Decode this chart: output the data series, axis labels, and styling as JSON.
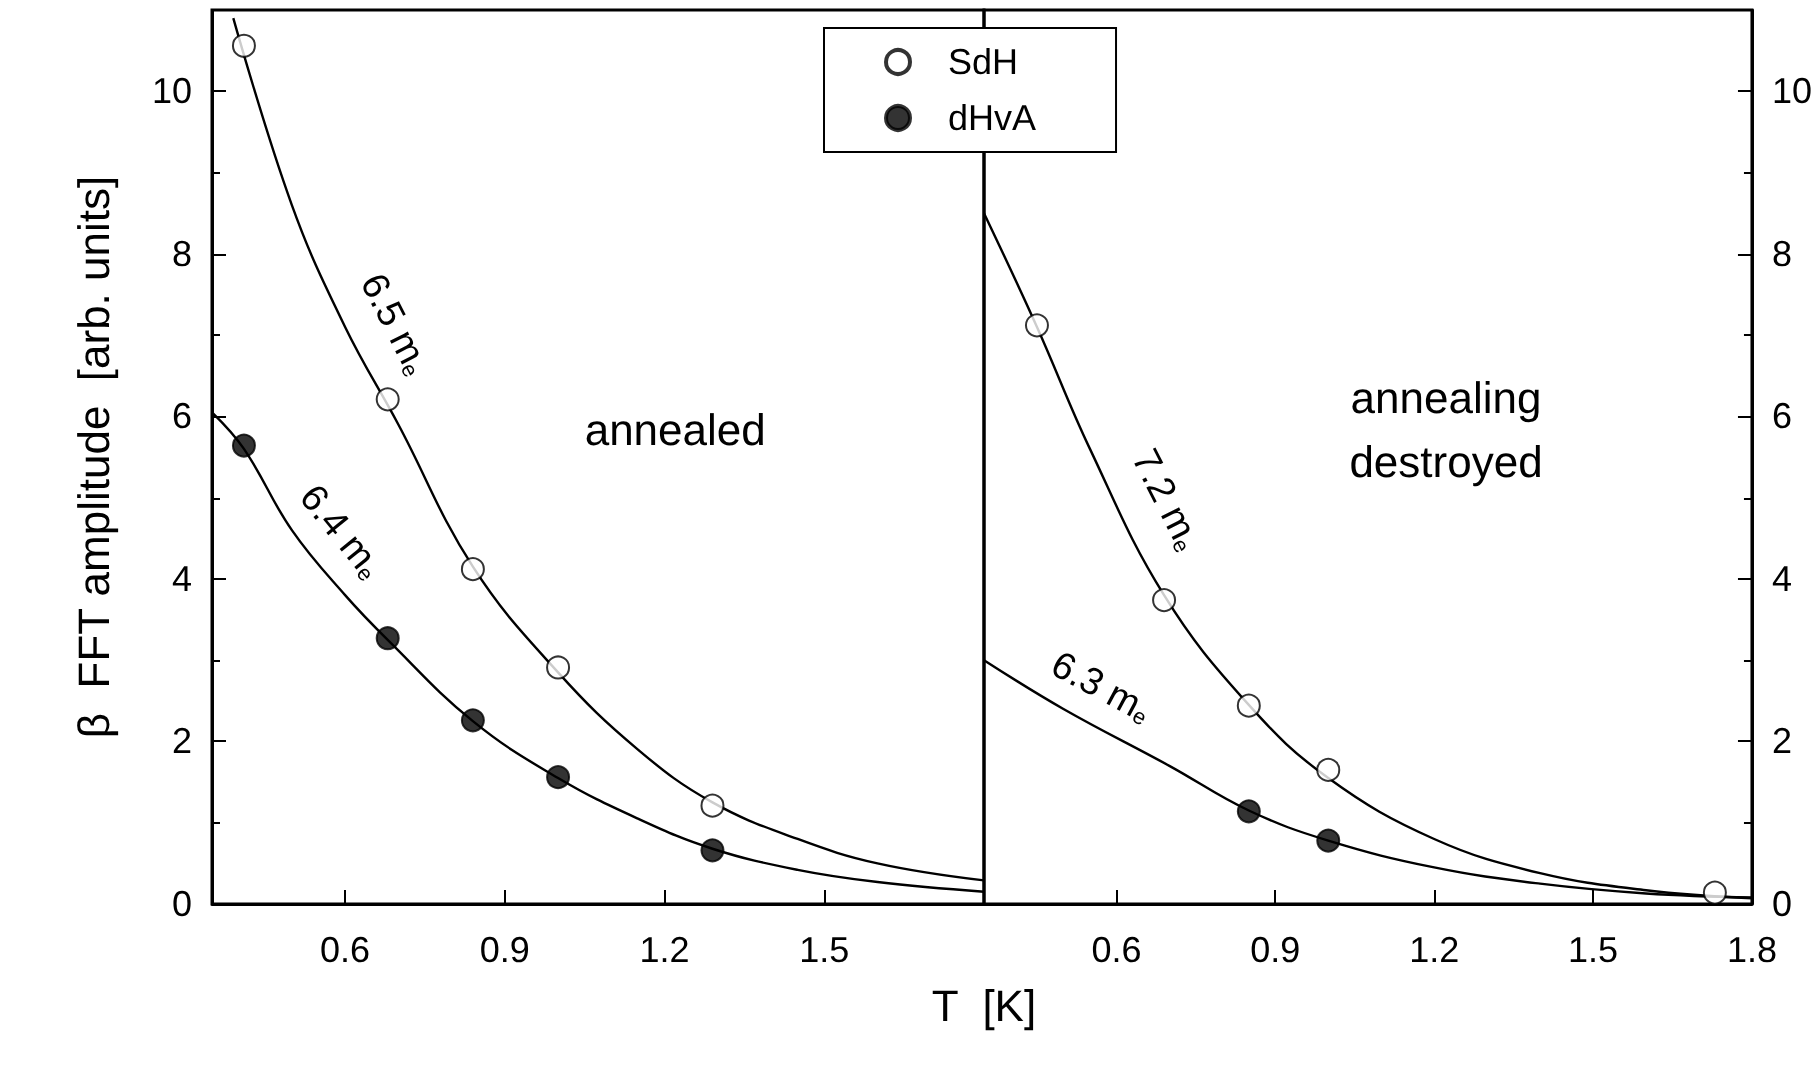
{
  "chart_data": [
    {
      "type": "scatter",
      "ylabel": "β  FFT amplitude  [arb. units]",
      "xlabel": "T  [K]",
      "xlim": [
        0.35,
        1.8
      ],
      "xticks": [
        0.6,
        0.9,
        1.2,
        1.5
      ],
      "ylim": [
        0,
        11
      ],
      "yticks": [
        0,
        2,
        4,
        6,
        8,
        10
      ],
      "legend": "top right",
      "grid": false,
      "series": [
        {
          "name": "SdH",
          "color": "#ffffff",
          "marker": "circle",
          "x": [
            0.41,
            0.68,
            0.84,
            1.0,
            1.29
          ],
          "values": [
            10.56,
            6.21,
            4.12,
            2.91,
            1.21
          ]
        },
        {
          "name": "dHvA",
          "color": "#000000",
          "marker": "circle",
          "x": [
            0.41,
            0.68,
            0.84,
            1.0,
            1.29
          ],
          "values": [
            5.64,
            3.27,
            2.26,
            1.56,
            0.66
          ]
        },
        {
          "type": "line",
          "name": "6.5 m$_{e}$",
          "color": "#000000",
          "x": [
            0.39,
            0.5,
            0.6,
            0.7,
            0.84,
            1.0,
            1.15,
            1.29,
            1.45,
            1.6,
            1.8
          ],
          "values": [
            10.9,
            8.6,
            7.1,
            5.9,
            4.15,
            2.85,
            1.9,
            1.25,
            0.8,
            0.5,
            0.29
          ]
        },
        {
          "type": "line",
          "name": "6.4 m$_{e}$",
          "color": "#000000",
          "x": [
            0.35,
            0.41,
            0.5,
            0.6,
            0.68,
            0.84,
            1.0,
            1.15,
            1.29,
            1.45,
            1.6,
            1.8
          ],
          "values": [
            6.05,
            5.6,
            4.6,
            3.8,
            3.25,
            2.25,
            1.55,
            1.05,
            0.68,
            0.42,
            0.27,
            0.15
          ]
        }
      ],
      "annotations": [
        "annealed"
      ]
    },
    {
      "type": "scatter",
      "xlim": [
        0.35,
        1.8
      ],
      "xticks": [
        0.6,
        0.9,
        1.2,
        1.5,
        1.8
      ],
      "ylim": [
        0,
        11
      ],
      "yticks": [
        0,
        2,
        4,
        6,
        8,
        10
      ],
      "grid": false,
      "series": [
        {
          "color": "#ffffff",
          "marker": "circle",
          "x": [
            0.45,
            0.69,
            0.85,
            1.0,
            1.73
          ],
          "values": [
            7.12,
            3.74,
            2.44,
            1.65,
            0.14
          ]
        },
        {
          "color": "#000000",
          "marker": "circle",
          "x": [
            0.85,
            1.0
          ],
          "values": [
            1.14,
            0.78
          ]
        },
        {
          "type": "line",
          "name": "7.2 m$_{e}$",
          "color": "#000000",
          "x": [
            0.35,
            0.45,
            0.55,
            0.69,
            0.85,
            1.0,
            1.2,
            1.4,
            1.6,
            1.8
          ],
          "values": [
            8.5,
            7.1,
            5.6,
            3.8,
            2.45,
            1.55,
            0.8,
            0.38,
            0.17,
            0.07
          ]
        },
        {
          "type": "line",
          "name": "6.3 m$_{e}$",
          "color": "#000000",
          "x": [
            0.35,
            0.5,
            0.7,
            0.85,
            1.0,
            1.2,
            1.4,
            1.6,
            1.8
          ],
          "values": [
            3.0,
            2.4,
            1.7,
            1.15,
            0.78,
            0.45,
            0.25,
            0.13,
            0.08
          ]
        }
      ],
      "annotations": [
        "annealing\ndestroyed"
      ]
    }
  ]
}
